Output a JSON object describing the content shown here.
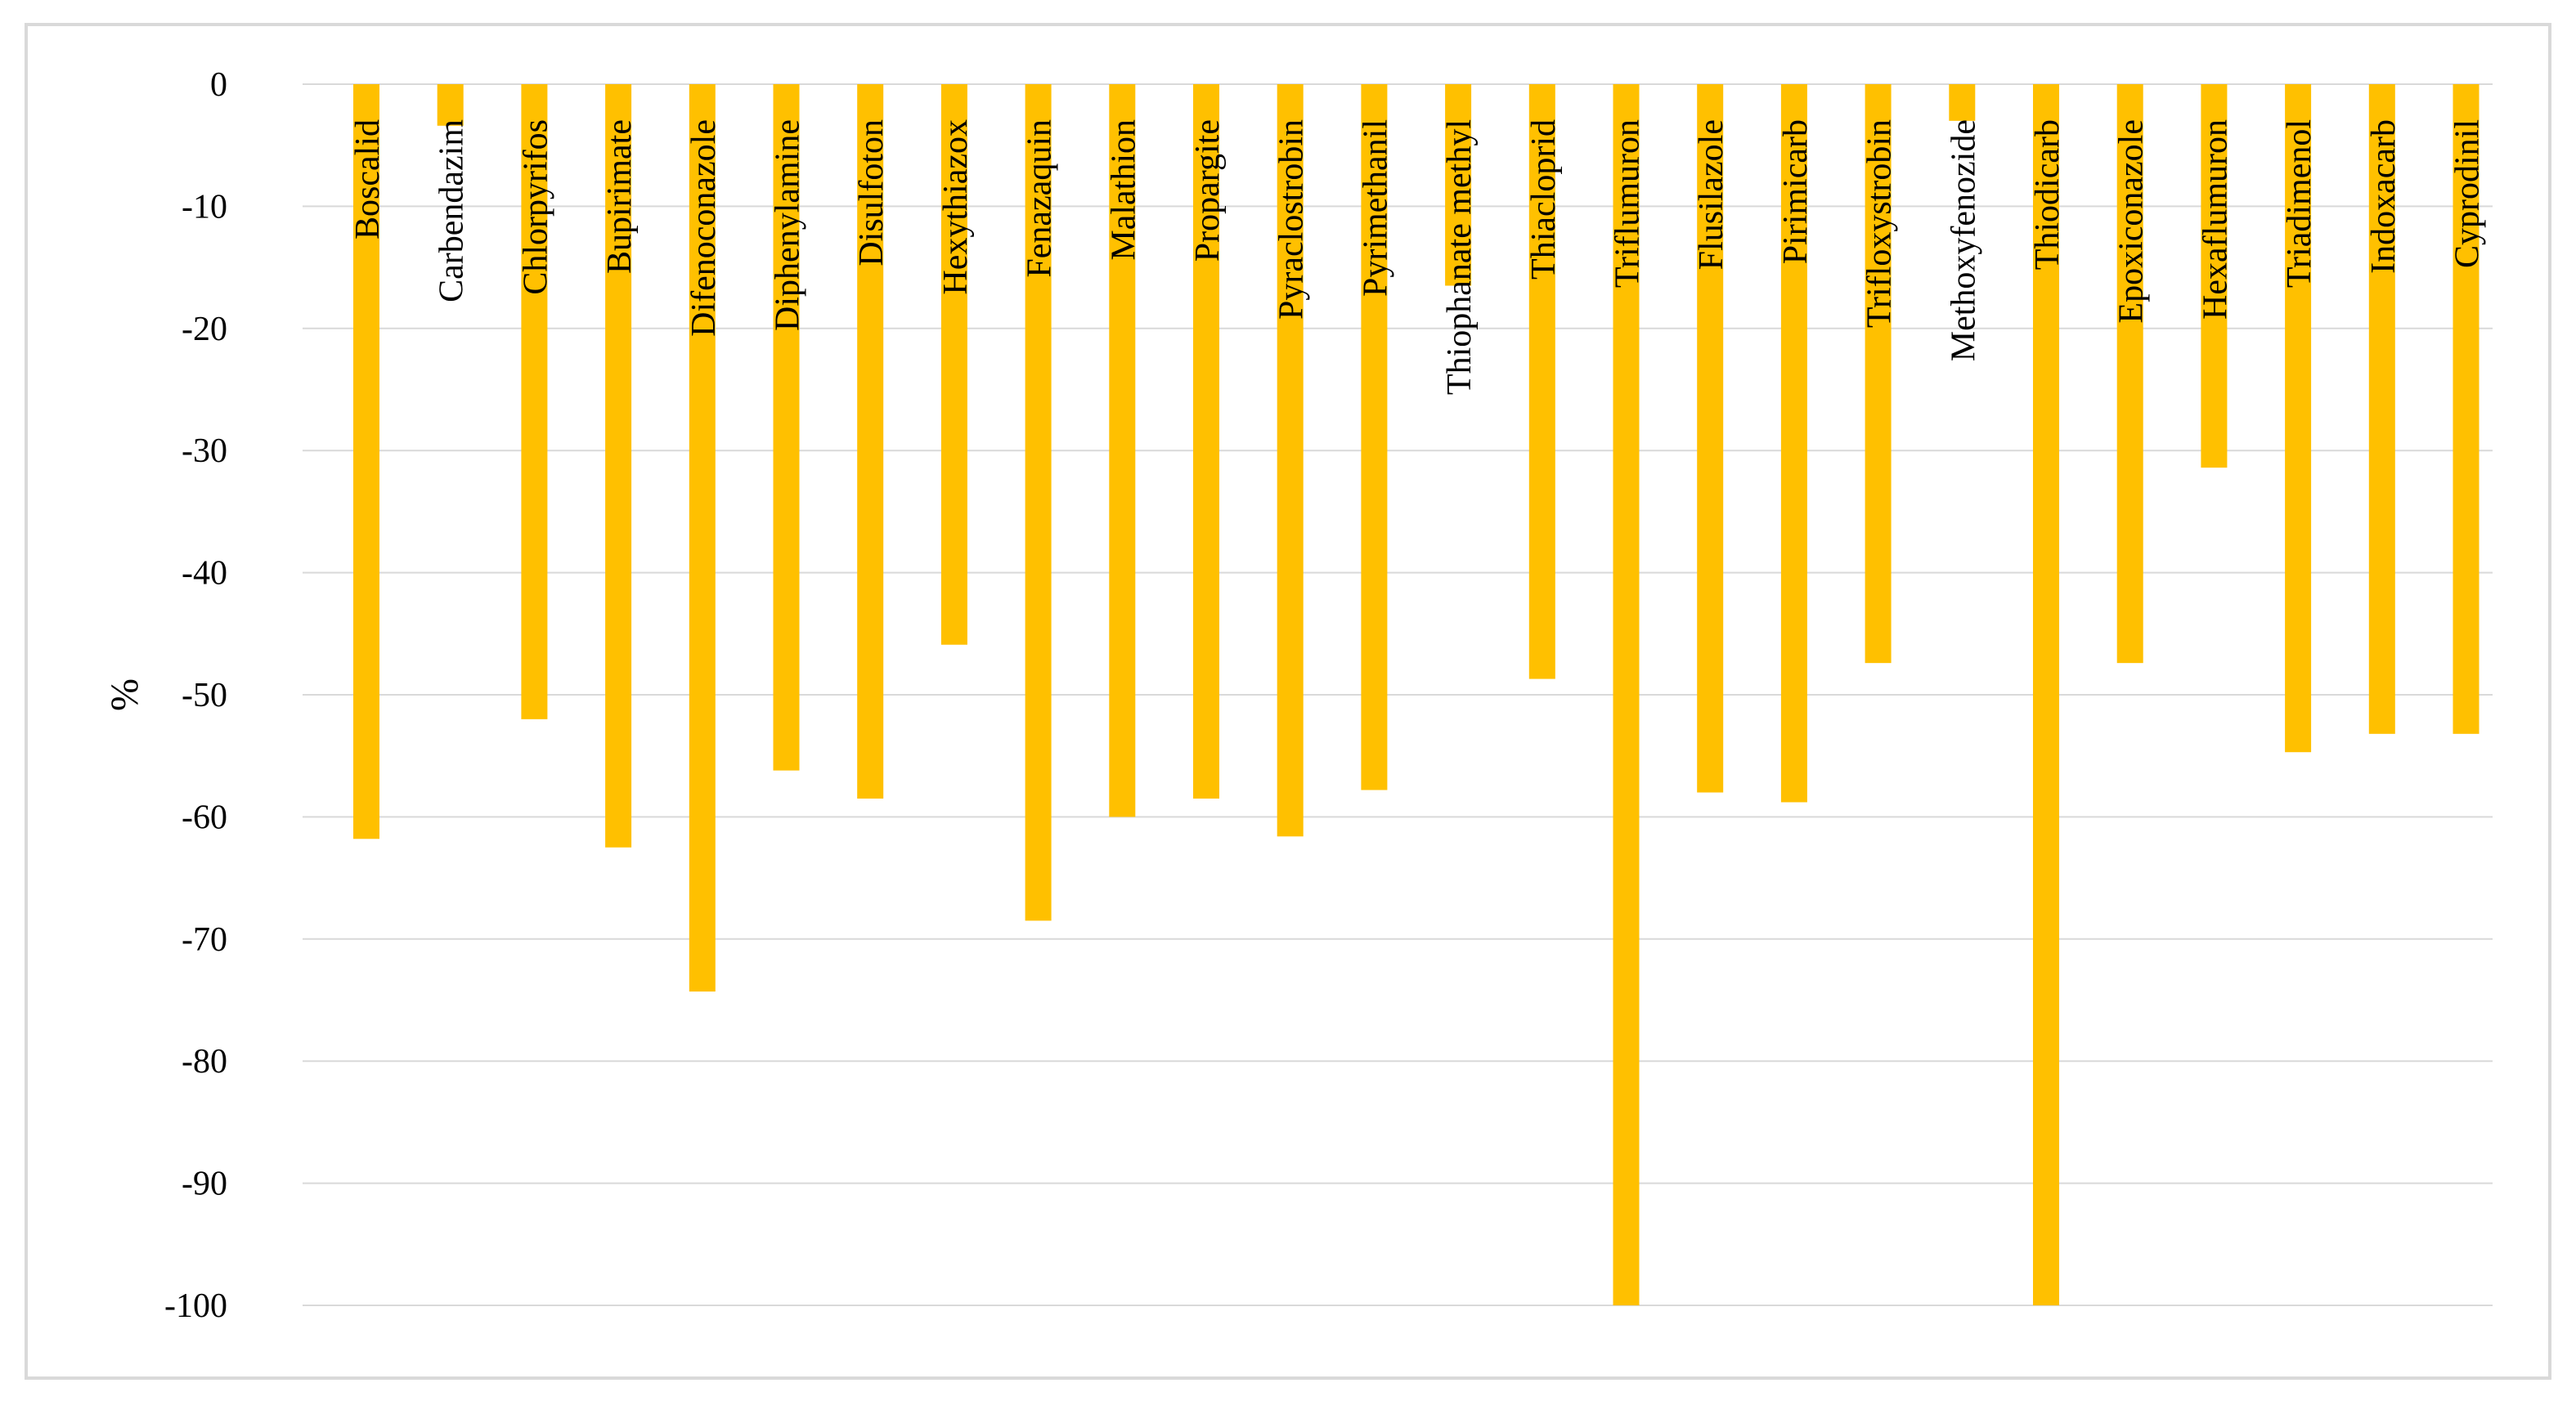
{
  "chart_data": {
    "type": "bar",
    "title": "",
    "xlabel": "",
    "ylabel": "%",
    "ylim": [
      -100,
      0
    ],
    "yticks": [
      0,
      -10,
      -20,
      -30,
      -40,
      -50,
      -60,
      -70,
      -80,
      -90,
      -100
    ],
    "grid": true,
    "legend": "none",
    "bar_color": "#FFC000",
    "gridline_color": "#d9d9d9",
    "categories": [
      "Boscalid",
      "Carbendazim",
      "Chlorpyrifos",
      "Bupirimate",
      "Difenoconazole",
      "Diphenylamine",
      "Disulfoton",
      "Hexythiazox",
      "Fenazaquin",
      "Malathion",
      "Propargite",
      "Pyraclostrobin",
      "Pyrimethanil",
      "Thiophanate methyl",
      "Thiacloprid",
      "Triflumuron",
      "Flusilazole",
      "Pirimicarb",
      "Trifloxystrobin",
      "Methoxyfenozide",
      "Thiodicarb",
      "Epoxiconazole",
      "Hexaflumuron",
      "Triadimenol",
      "Indoxacarb",
      "Cyprodinil"
    ],
    "values": [
      -61.8,
      -3.4,
      -52.0,
      -62.5,
      -74.3,
      -56.2,
      -58.5,
      -45.9,
      -68.5,
      -60.0,
      -58.5,
      -61.6,
      -57.8,
      -16.5,
      -48.7,
      -100,
      -58.0,
      -58.8,
      -47.4,
      -3.0,
      -100,
      -47.4,
      -31.4,
      -54.7,
      -53.2,
      -53.2
    ]
  }
}
